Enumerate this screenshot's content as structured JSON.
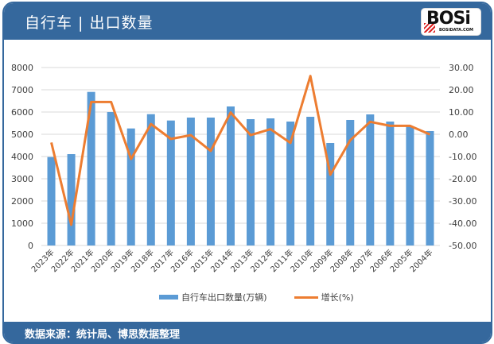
{
  "header": {
    "title": "自行车 | 出口数量",
    "logo_text": "BOSi",
    "logo_sub": "BOSIDATA.COM"
  },
  "footer": {
    "source": "数据来源：统计局、博思数据整理"
  },
  "legend": {
    "bar_label": "自行车出口数量(万辆)",
    "line_label": "增长(%)"
  },
  "colors": {
    "frame": "#35689d",
    "bar": "#5b9bd5",
    "line": "#ed7d31",
    "grid": "#d9d9d9"
  },
  "chart_data": {
    "type": "bar",
    "title": "自行车 | 出口数量",
    "categories": [
      "2023年",
      "2022年",
      "2021年",
      "2020年",
      "2019年",
      "2018年",
      "2017年",
      "2016年",
      "2015年",
      "2014年",
      "2013年",
      "2012年",
      "2011年",
      "2010年",
      "2009年",
      "2008年",
      "2007年",
      "2006年",
      "2005年",
      "2004年"
    ],
    "series": [
      {
        "name": "自行车出口数量(万辆)",
        "type": "bar",
        "axis": "left",
        "values": [
          3975,
          4107,
          6904,
          6000,
          5261,
          5904,
          5618,
          5750,
          5750,
          6250,
          5679,
          5714,
          5571,
          5786,
          4607,
          5643,
          5893,
          5571,
          5357,
          5143
        ]
      },
      {
        "name": "增长(%)",
        "type": "line",
        "axis": "right",
        "values": [
          -3.7,
          -40.7,
          14.5,
          14.5,
          -11.1,
          4.6,
          -2.1,
          -0.4,
          -7.5,
          9.8,
          -0.4,
          2.3,
          -3.9,
          26.2,
          -18.2,
          -2.7,
          5.6,
          3.8,
          3.8,
          -0.1
        ]
      }
    ],
    "left_axis": {
      "ylim": [
        0,
        8000
      ],
      "ticks": [
        "0",
        "1000",
        "2000",
        "3000",
        "4000",
        "5000",
        "6000",
        "7000",
        "8000"
      ]
    },
    "right_axis": {
      "ylim": [
        -50,
        30
      ],
      "ticks": [
        "-50.00",
        "-40.00",
        "-30.00",
        "-20.00",
        "-10.00",
        "0.00",
        "10.00",
        "20.00",
        "30.00"
      ]
    },
    "xlabel": "",
    "ylabel": "",
    "grid": true,
    "legend_position": "bottom"
  }
}
